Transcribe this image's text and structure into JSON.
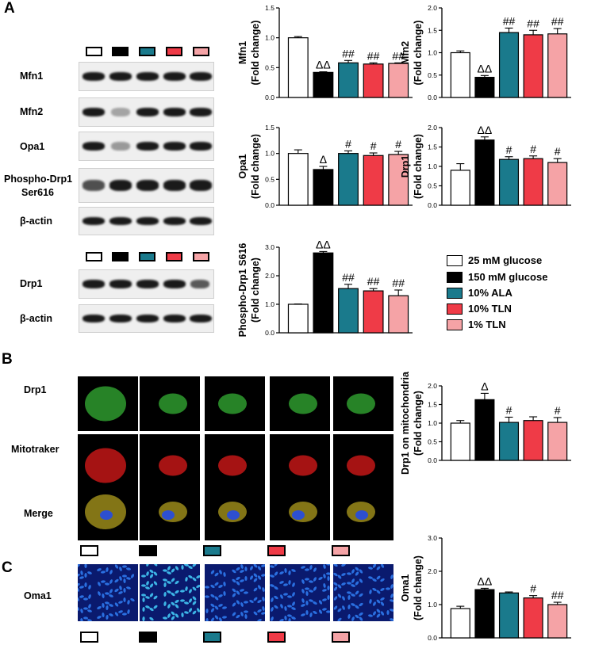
{
  "panels": {
    "a": "A",
    "b": "B",
    "c": "C"
  },
  "colors": {
    "g25": "#ffffff",
    "g150": "#000000",
    "ala": "#1a7a8c",
    "tln10": "#ef3b47",
    "tln1": "#f5a3a6"
  },
  "blots": {
    "mfn1": "Mfn1",
    "mfn2": "Mfn2",
    "opa1": "Opa1",
    "pdrp1_line1": "Phospho-Drp1",
    "pdrp1_line2": "Ser616",
    "actin1": "β-actin",
    "drp1": "Drp1",
    "actin2": "β-actin"
  },
  "legend": {
    "items": [
      {
        "label": "25 mM glucose",
        "color": "#ffffff"
      },
      {
        "label": "150 mM glucose",
        "color": "#000000"
      },
      {
        "label": "10% ALA",
        "color": "#1a7a8c"
      },
      {
        "label": "10% TLN",
        "color": "#ef3b47"
      },
      {
        "label": "1% TLN",
        "color": "#f5a3a6"
      }
    ]
  },
  "micrographs": {
    "rows": {
      "drp1": "Drp1",
      "mito": "Mitotraker",
      "merge": "Merge",
      "oma1": "Oma1"
    }
  },
  "chart_data": [
    {
      "id": "mfn1",
      "type": "bar",
      "ylabel_line1": "Mfn1",
      "ylabel_line2": "(Fold change)",
      "ylim": [
        0,
        1.5
      ],
      "yticks": [
        "0.0",
        "0.5",
        "1.0",
        "1.5"
      ],
      "values": [
        1.0,
        0.42,
        0.58,
        0.56,
        0.57
      ],
      "errors": [
        0.02,
        0.01,
        0.04,
        0.02,
        0.01
      ],
      "annotations": [
        "",
        "ΔΔ",
        "##",
        "##",
        "##"
      ]
    },
    {
      "id": "mfn2",
      "type": "bar",
      "ylabel_line1": "Mfn2",
      "ylabel_line2": "(Fold change)",
      "ylim": [
        0,
        2.0
      ],
      "yticks": [
        "0.0",
        "0.5",
        "1.0",
        "1.5",
        "2.0"
      ],
      "values": [
        1.0,
        0.45,
        1.45,
        1.4,
        1.42
      ],
      "errors": [
        0.04,
        0.04,
        0.1,
        0.1,
        0.12
      ],
      "annotations": [
        "",
        "ΔΔ",
        "##",
        "##",
        "##"
      ]
    },
    {
      "id": "opa1",
      "type": "bar",
      "ylabel_line1": "Opa1",
      "ylabel_line2": "(Fold change)",
      "ylim": [
        0,
        1.5
      ],
      "yticks": [
        "0.0",
        "0.5",
        "1.0",
        "1.5"
      ],
      "values": [
        1.0,
        0.69,
        1.0,
        0.96,
        0.98
      ],
      "errors": [
        0.07,
        0.06,
        0.05,
        0.05,
        0.06
      ],
      "annotations": [
        "",
        "Δ",
        "#",
        "#",
        "#"
      ]
    },
    {
      "id": "drp1",
      "type": "bar",
      "ylabel_line1": "Drp1",
      "ylabel_line2": "(Fold change)",
      "ylim": [
        0,
        2.0
      ],
      "yticks": [
        "0.0",
        "0.5",
        "1.0",
        "1.5",
        "2.0"
      ],
      "values": [
        0.9,
        1.68,
        1.18,
        1.2,
        1.1
      ],
      "errors": [
        0.17,
        0.08,
        0.07,
        0.07,
        0.1
      ],
      "annotations": [
        "",
        "ΔΔ",
        "#",
        "#",
        "#"
      ]
    },
    {
      "id": "pdrp1",
      "type": "bar",
      "ylabel_line1": "Phospho-Drp1 S616",
      "ylabel_line2": "(Fold change)",
      "ylim": [
        0,
        3.0
      ],
      "yticks": [
        "0.0",
        "1.0",
        "2.0",
        "3.0"
      ],
      "values": [
        1.0,
        2.8,
        1.55,
        1.47,
        1.3
      ],
      "errors": [
        0.01,
        0.05,
        0.15,
        0.08,
        0.2
      ],
      "annotations": [
        "",
        "ΔΔ",
        "##",
        "##",
        "##"
      ]
    },
    {
      "id": "drp1mito",
      "type": "bar",
      "ylabel_line1": "Drp1 on mitochondria",
      "ylabel_line2": "(Fold change)",
      "ylim": [
        0,
        2.0
      ],
      "yticks": [
        "0.0",
        "0.5",
        "1.0",
        "1.5",
        "2.0"
      ],
      "values": [
        1.0,
        1.63,
        1.02,
        1.07,
        1.02
      ],
      "errors": [
        0.07,
        0.17,
        0.14,
        0.1,
        0.13
      ],
      "annotations": [
        "",
        "Δ",
        "#",
        "",
        "#"
      ]
    },
    {
      "id": "oma1",
      "type": "bar",
      "ylabel_line1": "Oma1",
      "ylabel_line2": "(Fold change)",
      "ylim": [
        0,
        3.0
      ],
      "yticks": [
        "0.0",
        "1.0",
        "2.0",
        "3.0"
      ],
      "values": [
        0.88,
        1.45,
        1.35,
        1.2,
        1.0
      ],
      "errors": [
        0.07,
        0.04,
        0.03,
        0.07,
        0.07
      ],
      "annotations": [
        "",
        "ΔΔ",
        "",
        "#",
        "##"
      ]
    }
  ]
}
